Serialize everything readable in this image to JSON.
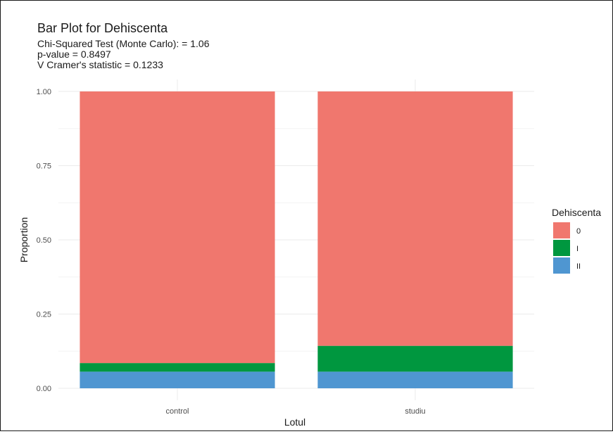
{
  "chart_data": {
    "type": "bar",
    "stacked": true,
    "title": "Bar Plot for Dehiscenta",
    "subtitle_lines": [
      "Chi-Squared Test (Monte Carlo): = 1.06",
      "p-value = 0.8497",
      "V Cramer's statistic = 0.1233"
    ],
    "xlabel": "Lotul",
    "ylabel": "Proportion",
    "categories": [
      "control",
      "studiu"
    ],
    "ylim": [
      0,
      1
    ],
    "yticks": [
      0.0,
      0.25,
      0.5,
      0.75,
      1.0
    ],
    "ytick_labels": [
      "0.00",
      "0.25",
      "0.50",
      "0.75",
      "1.00"
    ],
    "grid": true,
    "legend": {
      "title": "Dehiscenta",
      "position": "right",
      "entries": [
        "0",
        "I",
        "II"
      ]
    },
    "series": [
      {
        "name": "II",
        "color": "#4f96d1",
        "values": [
          0.056,
          0.056
        ]
      },
      {
        "name": "I",
        "color": "#00973f",
        "values": [
          0.029,
          0.087
        ]
      },
      {
        "name": "0",
        "color": "#f0776e",
        "values": [
          0.915,
          0.857
        ]
      }
    ]
  }
}
